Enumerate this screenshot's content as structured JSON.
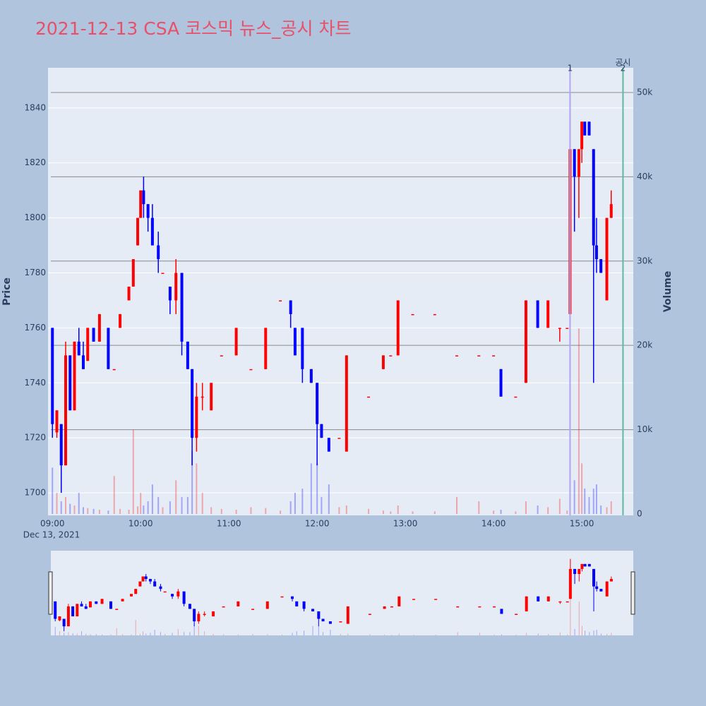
{
  "chart_data": {
    "type": "candlestick",
    "title": "2021-12-13 CSA 코스믹 뉴스_공시 차트",
    "y_label": "Price",
    "y2_label": "Volume",
    "x_date_label": "Dec 13, 2021",
    "increasing_color": "#ff0000",
    "decreasing_color": "#0000ff",
    "x": [
      "09:00",
      "09:03",
      "09:06",
      "09:09",
      "09:12",
      "09:15",
      "09:18",
      "09:21",
      "09:24",
      "09:28",
      "09:32",
      "09:38",
      "09:42",
      "09:46",
      "09:52",
      "09:55",
      "09:58",
      "10:00",
      "10:02",
      "10:05",
      "10:08",
      "10:12",
      "10:15",
      "10:20",
      "10:24",
      "10:28",
      "10:32",
      "10:35",
      "10:38",
      "10:42",
      "10:48",
      "10:55",
      "11:05",
      "11:15",
      "11:25",
      "11:35",
      "11:42",
      "11:45",
      "11:50",
      "11:56",
      "12:00",
      "12:03",
      "12:08",
      "12:15",
      "12:20",
      "12:35",
      "12:45",
      "12:50",
      "12:55",
      "13:05",
      "13:20",
      "13:35",
      "13:50",
      "14:00",
      "14:05",
      "14:15",
      "14:22",
      "14:30",
      "14:37",
      "14:45",
      "14:50",
      "14:52",
      "14:55",
      "14:58",
      "15:00",
      "15:02",
      "15:05",
      "15:08",
      "15:10",
      "15:13",
      "15:17",
      "15:20"
    ],
    "open": [
      1760,
      1722,
      1725,
      1710,
      1750,
      1730,
      1755,
      1750,
      1748,
      1760,
      1755,
      1760,
      1745,
      1760,
      1770,
      1775,
      1790,
      1800,
      1810,
      1805,
      1800,
      1790,
      1780,
      1775,
      1770,
      1780,
      1755,
      1745,
      1720,
      1735,
      1730,
      1750,
      1750,
      1745,
      1745,
      1770,
      1770,
      1760,
      1760,
      1745,
      1740,
      1725,
      1720,
      1720,
      1715,
      1735,
      1745,
      1750,
      1750,
      1765,
      1765,
      1750,
      1750,
      1750,
      1745,
      1735,
      1740,
      1770,
      1760,
      1760,
      1760,
      1765,
      1825,
      1815,
      1825,
      1835,
      1835,
      1825,
      1790,
      1785,
      1770,
      1800
    ],
    "high": [
      1760,
      1730,
      1725,
      1755,
      1750,
      1755,
      1760,
      1755,
      1760,
      1760,
      1765,
      1760,
      1745,
      1765,
      1775,
      1785,
      1800,
      1810,
      1815,
      1805,
      1805,
      1795,
      1780,
      1775,
      1785,
      1780,
      1755,
      1745,
      1740,
      1740,
      1740,
      1750,
      1760,
      1745,
      1760,
      1770,
      1770,
      1760,
      1760,
      1745,
      1740,
      1725,
      1720,
      1720,
      1750,
      1735,
      1750,
      1750,
      1770,
      1765,
      1765,
      1750,
      1750,
      1750,
      1745,
      1735,
      1770,
      1770,
      1770,
      1760,
      1760,
      1845,
      1825,
      1825,
      1835,
      1835,
      1835,
      1825,
      1800,
      1785,
      1800,
      1810
    ],
    "low": [
      1720,
      1720,
      1700,
      1710,
      1730,
      1730,
      1750,
      1745,
      1748,
      1755,
      1755,
      1745,
      1745,
      1760,
      1770,
      1775,
      1790,
      1800,
      1800,
      1795,
      1790,
      1780,
      1780,
      1765,
      1765,
      1750,
      1745,
      1710,
      1715,
      1730,
      1730,
      1750,
      1750,
      1745,
      1745,
      1770,
      1760,
      1750,
      1740,
      1740,
      1710,
      1720,
      1715,
      1720,
      1715,
      1735,
      1745,
      1750,
      1750,
      1765,
      1765,
      1750,
      1750,
      1750,
      1735,
      1735,
      1740,
      1760,
      1760,
      1755,
      1760,
      1765,
      1795,
      1800,
      1820,
      1830,
      1830,
      1740,
      1780,
      1780,
      1770,
      1800
    ],
    "close": [
      1725,
      1730,
      1710,
      1750,
      1730,
      1755,
      1750,
      1745,
      1760,
      1755,
      1765,
      1745,
      1745,
      1765,
      1775,
      1785,
      1800,
      1810,
      1805,
      1800,
      1790,
      1785,
      1780,
      1770,
      1780,
      1755,
      1745,
      1720,
      1735,
      1735,
      1740,
      1750,
      1760,
      1745,
      1760,
      1770,
      1765,
      1750,
      1745,
      1740,
      1725,
      1720,
      1715,
      1720,
      1750,
      1735,
      1750,
      1750,
      1770,
      1765,
      1765,
      1750,
      1750,
      1750,
      1735,
      1735,
      1770,
      1760,
      1770,
      1760,
      1760,
      1825,
      1815,
      1825,
      1835,
      1830,
      1830,
      1790,
      1785,
      1780,
      1800,
      1805
    ],
    "volume": [
      5500,
      2500,
      1500,
      2000,
      1200,
      1000,
      2500,
      800,
      700,
      600,
      500,
      400,
      4500,
      600,
      500,
      10000,
      900,
      2500,
      1000,
      1500,
      3500,
      2000,
      800,
      1500,
      4000,
      2000,
      2000,
      7500,
      6000,
      2500,
      800,
      600,
      500,
      800,
      700,
      400,
      1500,
      2500,
      3000,
      6000,
      6000,
      2000,
      3500,
      800,
      1000,
      600,
      400,
      300,
      1000,
      300,
      300,
      2000,
      1500,
      400,
      500,
      300,
      1500,
      1000,
      800,
      1800,
      400,
      50000,
      4000,
      22000,
      6000,
      3000,
      2000,
      3000,
      3500,
      1000,
      800,
      1500
    ],
    "xlim": [
      "08:57",
      "15:35"
    ],
    "xticks": [
      "09:00",
      "10:00",
      "11:00",
      "12:00",
      "13:00",
      "14:00",
      "15:00"
    ],
    "ylim": [
      1691.8,
      1854.6
    ],
    "yticks": [
      1700,
      1720,
      1740,
      1760,
      1780,
      1800,
      1820,
      1840
    ],
    "y2lim": [
      -170,
      52930
    ],
    "y2ticks": [
      0,
      {
        "value": 10000,
        "label": "10k"
      },
      {
        "value": 20000,
        "label": "20k"
      },
      {
        "value": 30000,
        "label": "30k"
      },
      {
        "value": 40000,
        "label": "40k"
      },
      {
        "value": 50000,
        "label": "50k"
      }
    ],
    "event_title": "공시",
    "events": [
      {
        "x": "14:52",
        "label": "1",
        "color": "#b0a8f0"
      },
      {
        "x": "15:28",
        "label": "2",
        "color": "#5fb8a0"
      }
    ]
  }
}
